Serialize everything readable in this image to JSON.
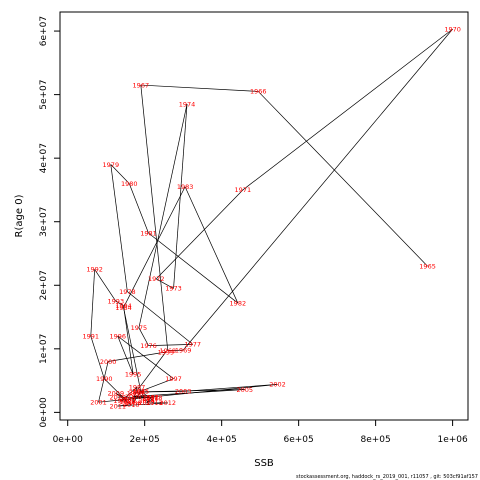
{
  "chart_data": {
    "type": "scatter",
    "xlabel": "SSB",
    "ylabel": "R(age 0)",
    "xlim": [
      -20000,
      1040000
    ],
    "ylim": [
      -1200000,
      63000000
    ],
    "x_ticks": [
      {
        "value": 0,
        "label": "0e+00"
      },
      {
        "value": 200000,
        "label": "2e+05"
      },
      {
        "value": 400000,
        "label": "4e+05"
      },
      {
        "value": 600000,
        "label": "6e+05"
      },
      {
        "value": 800000,
        "label": "8e+05"
      },
      {
        "value": 1000000,
        "label": "1e+06"
      }
    ],
    "y_ticks": [
      {
        "value": 0,
        "label": "0e+00"
      },
      {
        "value": 10000000,
        "label": "1e+07"
      },
      {
        "value": 20000000,
        "label": "2e+07"
      },
      {
        "value": 30000000,
        "label": "3e+07"
      },
      {
        "value": 40000000,
        "label": "4e+07"
      },
      {
        "value": 50000000,
        "label": "5e+07"
      },
      {
        "value": 60000000,
        "label": "6e+07"
      }
    ],
    "line_color": "#000000",
    "label_color": "#ff0000",
    "points": [
      {
        "year": "1965",
        "x": 935000,
        "y": 23000000
      },
      {
        "year": "1966",
        "x": 495000,
        "y": 50500000
      },
      {
        "year": "1967",
        "x": 190000,
        "y": 51500000
      },
      {
        "year": "1968",
        "x": 260000,
        "y": 9700000
      },
      {
        "year": "1969",
        "x": 300000,
        "y": 9800000
      },
      {
        "year": "1970",
        "x": 1000000,
        "y": 60300000
      },
      {
        "year": "1971",
        "x": 455000,
        "y": 35000000
      },
      {
        "year": "1972",
        "x": 230000,
        "y": 21000000
      },
      {
        "year": "1973",
        "x": 275000,
        "y": 19500000
      },
      {
        "year": "1974",
        "x": 310000,
        "y": 48500000
      },
      {
        "year": "1975",
        "x": 185000,
        "y": 13300000
      },
      {
        "year": "1976",
        "x": 210000,
        "y": 10500000
      },
      {
        "year": "1977",
        "x": 325000,
        "y": 10700000
      },
      {
        "year": "1978",
        "x": 155000,
        "y": 19000000
      },
      {
        "year": "1979",
        "x": 112000,
        "y": 39000000
      },
      {
        "year": "1980",
        "x": 160000,
        "y": 36000000
      },
      {
        "year": "1981",
        "x": 210000,
        "y": 28200000
      },
      {
        "year": "1982",
        "x": 442000,
        "y": 17200000
      },
      {
        "year": "1983",
        "x": 305000,
        "y": 35500000
      },
      {
        "year": "1984",
        "x": 145000,
        "y": 16500000
      },
      {
        "year": "1985",
        "x": 190000,
        "y": 3300000
      },
      {
        "year": "1986",
        "x": 170000,
        "y": 1500000
      },
      {
        "year": "1987",
        "x": 180000,
        "y": 4000000
      },
      {
        "year": "1988",
        "x": 140000,
        "y": 1800000
      },
      {
        "year": "1989",
        "x": 155000,
        "y": 1700000
      },
      {
        "year": "1990",
        "x": 95000,
        "y": 5300000
      },
      {
        "year": "1991",
        "x": 60000,
        "y": 12000000
      },
      {
        "year": "1992",
        "x": 70000,
        "y": 22500000
      },
      {
        "year": "1993",
        "x": 125000,
        "y": 17500000
      },
      {
        "year": "1994",
        "x": 145000,
        "y": 16800000
      },
      {
        "year": "1995",
        "x": 170000,
        "y": 6000000
      },
      {
        "year": "1996",
        "x": 130000,
        "y": 12000000
      },
      {
        "year": "1997",
        "x": 275000,
        "y": 5300000
      },
      {
        "year": "1998",
        "x": 175000,
        "y": 3000000
      },
      {
        "year": "1999",
        "x": 255000,
        "y": 9500000
      },
      {
        "year": "2000",
        "x": 105000,
        "y": 8000000
      },
      {
        "year": "2001",
        "x": 80000,
        "y": 1600000
      },
      {
        "year": "2002",
        "x": 545000,
        "y": 4400000
      },
      {
        "year": "2003",
        "x": 300000,
        "y": 3300000
      },
      {
        "year": "2004",
        "x": 180000,
        "y": 3200000
      },
      {
        "year": "2005",
        "x": 460000,
        "y": 3600000
      },
      {
        "year": "2006",
        "x": 170000,
        "y": 2500000
      },
      {
        "year": "2007",
        "x": 215000,
        "y": 2400000
      },
      {
        "year": "2008",
        "x": 155000,
        "y": 2100000
      },
      {
        "year": "2009",
        "x": 125000,
        "y": 3000000
      },
      {
        "year": "2010",
        "x": 165000,
        "y": 1200000
      },
      {
        "year": "2011",
        "x": 130000,
        "y": 1000000
      },
      {
        "year": "2012",
        "x": 260000,
        "y": 1500000
      },
      {
        "year": "2013",
        "x": 225000,
        "y": 1500000
      },
      {
        "year": "2014",
        "x": 205000,
        "y": 1800000
      },
      {
        "year": "2015",
        "x": 190000,
        "y": 3300000
      },
      {
        "year": "2016",
        "x": 215000,
        "y": 2200000
      },
      {
        "year": "2017",
        "x": 205000,
        "y": 1500000
      },
      {
        "year": "2018",
        "x": 225000,
        "y": 2300000
      },
      {
        "year": "2019",
        "x": 130000,
        "y": 2400000
      }
    ]
  },
  "footnote": "stockassessment.org, haddock_rs_2019_001, r11057 , git: 503cf91af157"
}
